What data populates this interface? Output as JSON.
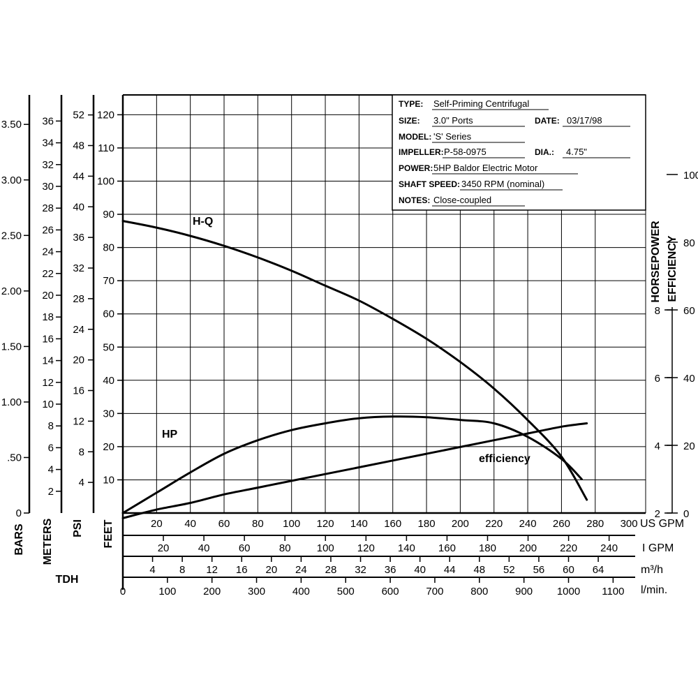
{
  "chart_data": {
    "type": "line",
    "title": "",
    "x_axis": {
      "label": "US GPM",
      "range": [
        0,
        300
      ],
      "ticks": [
        20,
        40,
        60,
        80,
        100,
        120,
        140,
        160,
        180,
        200,
        220,
        240,
        260,
        280,
        300
      ]
    },
    "secondary_x_axes": [
      {
        "label": "I GPM",
        "ticks": [
          20,
          40,
          60,
          80,
          100,
          120,
          140,
          160,
          180,
          200,
          220,
          240
        ]
      },
      {
        "label": "m³/h",
        "ticks": [
          4,
          8,
          12,
          16,
          20,
          24,
          28,
          32,
          36,
          40,
          44,
          48,
          52,
          56,
          60,
          64
        ]
      },
      {
        "label": "l/min.",
        "ticks": [
          0,
          100,
          200,
          300,
          400,
          500,
          600,
          700,
          800,
          900,
          1000,
          1100
        ]
      }
    ],
    "y_axis": {
      "label": "FEET",
      "range": [
        0,
        125
      ],
      "ticks": [
        10,
        20,
        30,
        40,
        50,
        60,
        70,
        80,
        90,
        100,
        110,
        120
      ]
    },
    "left_scales": [
      {
        "label": "BARS",
        "ticks": [
          "0",
          ".50",
          "1.00",
          "1.50",
          "2.00",
          "2.50",
          "3.00",
          "3.50"
        ]
      },
      {
        "label": "METERS",
        "ticks": [
          2,
          4,
          6,
          8,
          10,
          12,
          14,
          16,
          18,
          20,
          22,
          24,
          26,
          28,
          30,
          32,
          34,
          36
        ]
      },
      {
        "label": "PSI",
        "ticks": [
          4,
          8,
          12,
          16,
          20,
          24,
          28,
          32,
          36,
          40,
          44,
          48,
          52
        ]
      }
    ],
    "left_group_label": "TDH",
    "right_scales": [
      {
        "label": "HORSEPOWER",
        "ticks": [
          2,
          4,
          6,
          8
        ]
      },
      {
        "label": "EFFICIENCY",
        "ticks": [
          0,
          20,
          40,
          60,
          80,
          100
        ]
      }
    ],
    "grid": true,
    "series": [
      {
        "name": "H-Q",
        "x": [
          0,
          20,
          40,
          60,
          80,
          100,
          120,
          140,
          160,
          180,
          200,
          220,
          240,
          260,
          275
        ],
        "y": [
          88,
          86,
          83.5,
          80.5,
          77,
          73,
          68.5,
          64,
          58.5,
          52.5,
          45.5,
          37.5,
          28,
          17,
          4
        ]
      },
      {
        "name": "HP",
        "x": [
          0,
          20,
          40,
          60,
          80,
          100,
          120,
          140,
          160,
          180,
          200,
          220,
          240,
          260,
          275
        ],
        "y": [
          1.85,
          2.1,
          2.3,
          2.55,
          2.75,
          2.95,
          3.15,
          3.35,
          3.55,
          3.75,
          3.95,
          4.15,
          4.35,
          4.55,
          4.65
        ]
      },
      {
        "name": "efficiency",
        "x": [
          0,
          20,
          40,
          60,
          80,
          100,
          120,
          140,
          160,
          180,
          200,
          220,
          240,
          260,
          272
        ],
        "y": [
          0,
          6,
          12,
          17.5,
          21.5,
          24.5,
          26.5,
          28,
          28.5,
          28.3,
          27.5,
          26.5,
          22.5,
          16,
          10
        ]
      }
    ],
    "annotations": [
      "H-Q",
      "HP",
      "efficiency"
    ]
  },
  "info_box": {
    "rows": [
      {
        "key": "TYPE:",
        "value": "Self-Priming Centrifugal"
      },
      {
        "key": "SIZE:",
        "value": "3.0\" Ports",
        "key2": "DATE:",
        "value2": "03/17/98"
      },
      {
        "key": "MODEL:",
        "value": "'S' Series"
      },
      {
        "key": "IMPELLER:",
        "value": "P-58-0975",
        "key2": "DIA.:",
        "value2": "4.75\""
      },
      {
        "key": "POWER:",
        "value": "5HP Baldor Electric Motor"
      },
      {
        "key": "SHAFT SPEED:",
        "value": "3450 RPM (nominal)"
      },
      {
        "key": "NOTES:",
        "value": "Close-coupled"
      }
    ]
  }
}
